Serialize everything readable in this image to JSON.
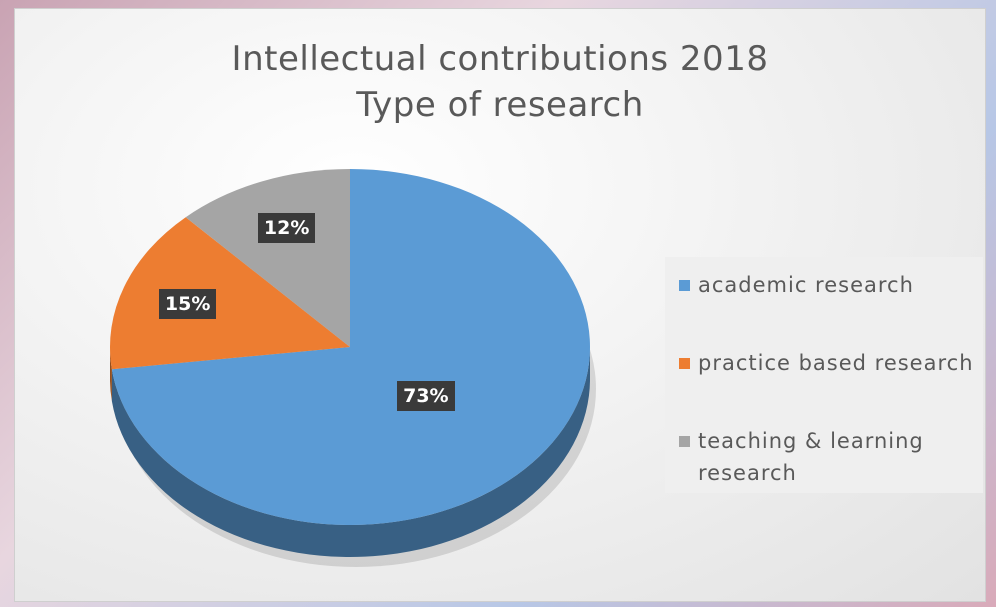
{
  "title_line1": "Intellectual contributions 2018",
  "title_line2": "Type of research",
  "chart_data": {
    "type": "pie",
    "title": "Intellectual contributions 2018 Type of research",
    "categories": [
      "academic research",
      "practice based research",
      "teaching & learning research"
    ],
    "values": [
      73,
      15,
      12
    ],
    "labels": [
      "73%",
      "15%",
      "12%"
    ],
    "colors": [
      "#5B9BD5",
      "#ED7D31",
      "#A5A5A5"
    ],
    "legend": "right",
    "style": "3d-tilted"
  }
}
